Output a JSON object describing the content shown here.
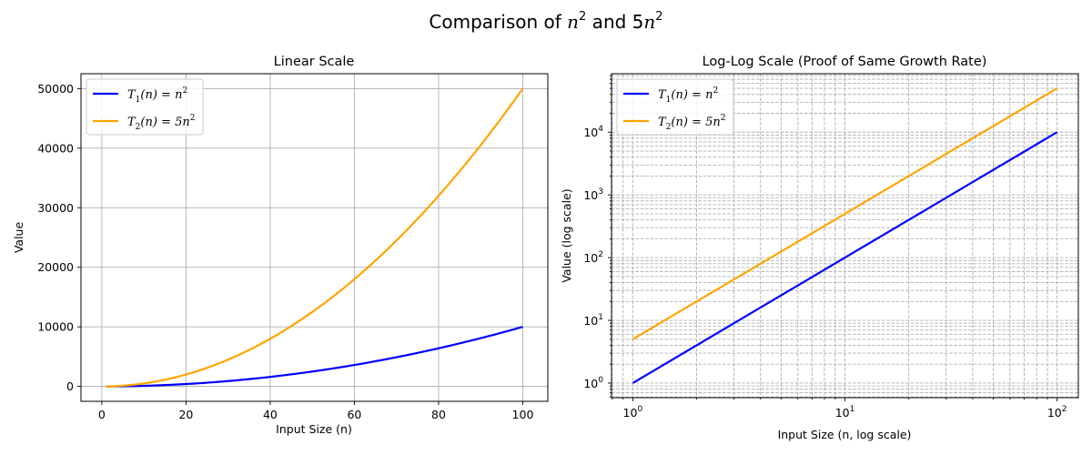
{
  "figure": {
    "title_plain": "Comparison of ",
    "title_a": "n",
    "title_a_sup": "2",
    "title_mid": " and 5",
    "title_b": "n",
    "title_b_sup": "2"
  },
  "colors": {
    "series1": "#0000ff",
    "series2": "#ffa500",
    "grid": "#b0b0b0"
  },
  "chart_data": [
    {
      "type": "line",
      "title": "Linear Scale",
      "xlabel": "Input Size (n)",
      "ylabel": "Value",
      "xscale": "linear",
      "yscale": "linear",
      "xlim": [
        -4.95,
        105.95
      ],
      "ylim": [
        -2500,
        52500
      ],
      "xticks": [
        0,
        20,
        40,
        60,
        80,
        100
      ],
      "xtick_labels": [
        "0",
        "20",
        "40",
        "60",
        "80",
        "100"
      ],
      "yticks": [
        0,
        10000,
        20000,
        30000,
        40000,
        50000
      ],
      "ytick_labels": [
        "0",
        "10000",
        "20000",
        "30000",
        "40000",
        "50000"
      ],
      "grid": "on",
      "legend_position": "upper-left",
      "x": [
        1,
        10,
        20,
        30,
        40,
        50,
        60,
        70,
        80,
        90,
        100
      ],
      "series": [
        {
          "name": "T1(n) = n^2",
          "color": "#0000ff",
          "values": [
            1,
            100,
            400,
            900,
            1600,
            2500,
            3600,
            4900,
            6400,
            8100,
            10000
          ]
        },
        {
          "name": "T2(n) = 5n^2",
          "color": "#ffa500",
          "values": [
            5,
            500,
            2000,
            4500,
            8000,
            12500,
            18000,
            24500,
            32000,
            40500,
            50000
          ]
        }
      ]
    },
    {
      "type": "line",
      "title": "Log-Log Scale (Proof of Same Growth Rate)",
      "xlabel": "Input Size (n, log scale)",
      "ylabel": "Value (log scale)",
      "xscale": "log",
      "yscale": "log",
      "xlim": [
        0.794,
        125.9
      ],
      "ylim": [
        0.585,
        85500
      ],
      "xticks": [
        1,
        10,
        100
      ],
      "xtick_base": "10",
      "xtick_exponents": [
        "0",
        "1",
        "2"
      ],
      "yticks": [
        1,
        10,
        100,
        1000,
        10000
      ],
      "ytick_base": "10",
      "ytick_exponents": [
        "0",
        "1",
        "2",
        "3",
        "4"
      ],
      "grid": "on (major and minor, dashed)",
      "legend_position": "upper-left",
      "x": [
        1,
        2,
        5,
        10,
        20,
        50,
        100
      ],
      "series": [
        {
          "name": "T1(n) = n^2",
          "color": "#0000ff",
          "values": [
            1,
            4,
            25,
            100,
            400,
            2500,
            10000
          ]
        },
        {
          "name": "T2(n) = 5n^2",
          "color": "#ffa500",
          "values": [
            5,
            20,
            125,
            500,
            2000,
            12500,
            50000
          ]
        }
      ]
    }
  ],
  "legend": {
    "t1_func": "T",
    "t1_sub": "1",
    "t1_arg": "(n) = n",
    "t1_sup": "2",
    "t2_func": "T",
    "t2_sub": "2",
    "t2_arg": "(n) = 5n",
    "t2_sup": "2"
  }
}
